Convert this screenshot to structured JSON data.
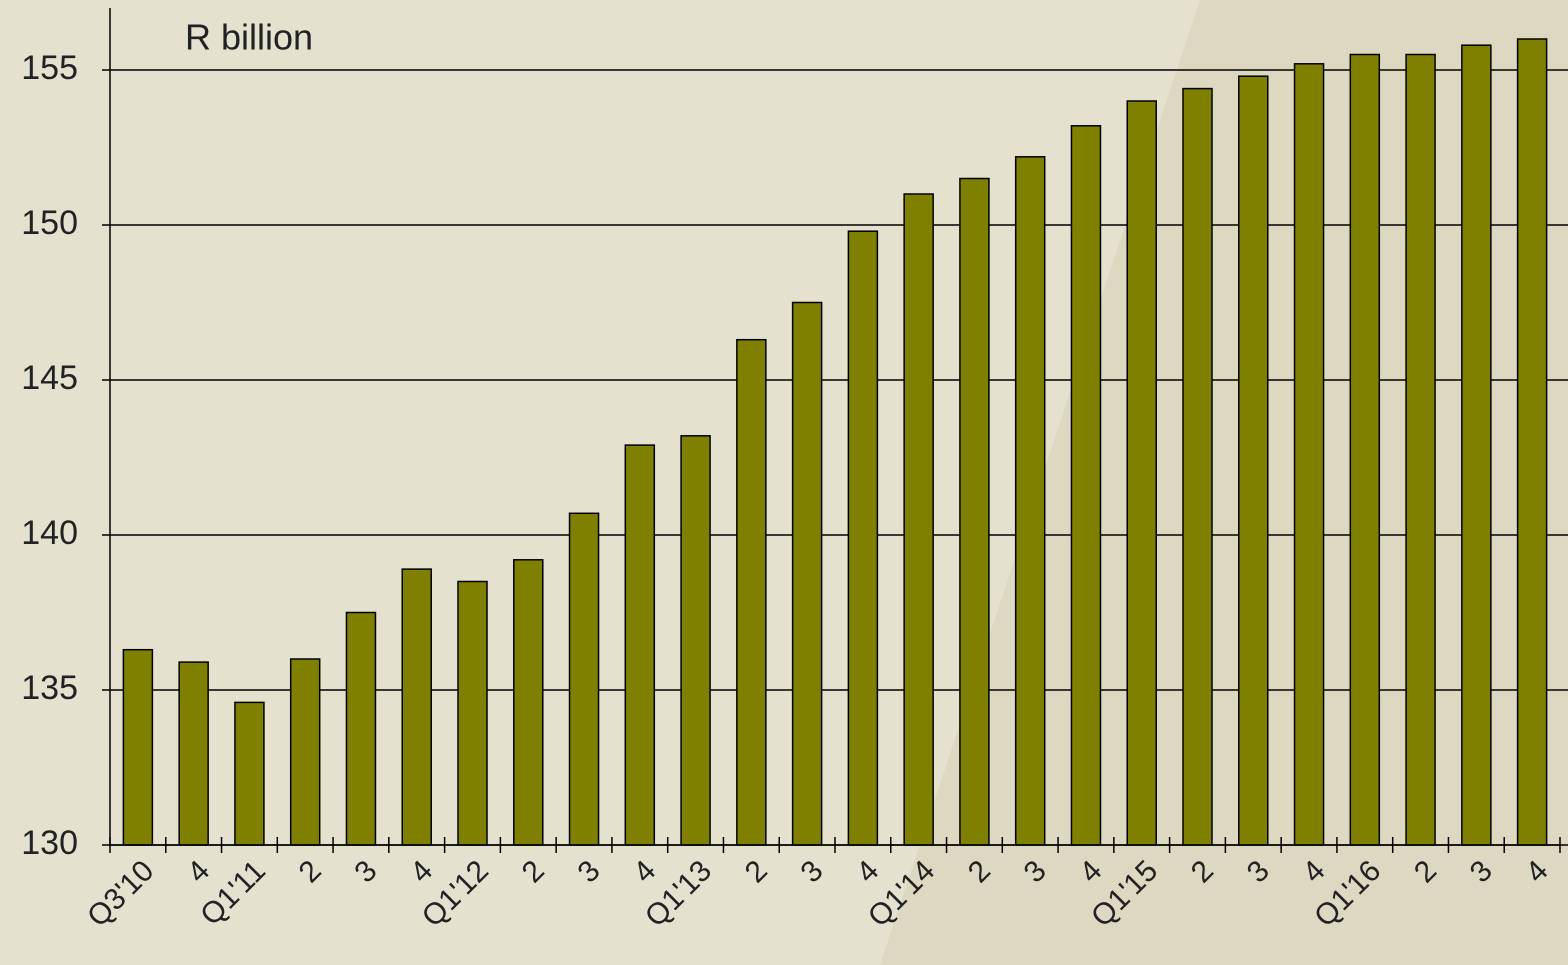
{
  "chart_data": {
    "type": "bar",
    "title": "R billion",
    "categories": [
      "Q3'10",
      "4",
      "Q1'11",
      "2",
      "3",
      "4",
      "Q1'12",
      "2",
      "3",
      "4",
      "Q1'13",
      "2",
      "3",
      "4",
      "Q1'14",
      "2",
      "3",
      "4",
      "Q1'15",
      "2",
      "3",
      "4",
      "Q1'16",
      "2",
      "3",
      "4"
    ],
    "values": [
      136.3,
      135.9,
      134.6,
      136.0,
      137.5,
      138.9,
      138.5,
      139.2,
      140.7,
      142.9,
      143.2,
      146.3,
      147.5,
      149.8,
      151.0,
      151.5,
      152.2,
      153.2,
      154.0,
      154.4,
      154.8,
      155.2,
      155.5,
      155.5,
      155.8,
      156.0
    ],
    "color": "#808000",
    "ylim": [
      130,
      157
    ],
    "yticks": [
      130,
      135,
      140,
      145,
      150,
      155
    ],
    "grid": true
  }
}
